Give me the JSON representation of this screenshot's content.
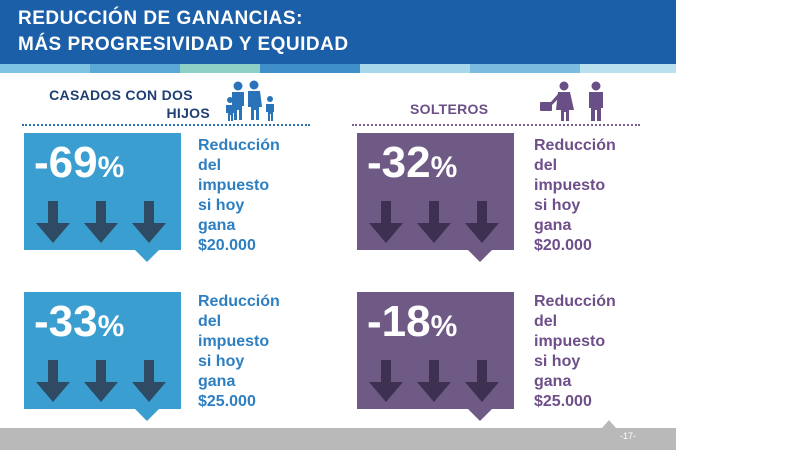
{
  "header": {
    "title_line1": "REDUCCIÓN DE GANANCIAS:",
    "title_line2": "MÁS PROGRESIVIDAD  Y EQUIDAD"
  },
  "colors": {
    "header_blue": "#1b5fa8",
    "box_blue": "#3a9fd0",
    "box_purple": "#6e5a84",
    "arrow_dark": "#2e4b63"
  },
  "sections": {
    "casados": {
      "label_line1": "CASADOS CON DOS",
      "label_line2": "HIJOS",
      "icon": "family-icon",
      "cards": [
        {
          "percent": "-69",
          "symbol": "%",
          "desc": [
            "Reducción",
            "del",
            "impuesto",
            "si hoy",
            "gana",
            "$20.000"
          ]
        },
        {
          "percent": "-33",
          "symbol": "%",
          "desc": [
            "Reducción",
            "del",
            "impuesto",
            "si hoy",
            "gana",
            "$25.000"
          ]
        }
      ]
    },
    "solteros": {
      "label": "SOLTEROS",
      "icon": "single-people-icon",
      "cards": [
        {
          "percent": "-32",
          "symbol": "%",
          "desc": [
            "Reducción",
            "del",
            "impuesto",
            "si hoy",
            "gana",
            "$20.000"
          ]
        },
        {
          "percent": "-18",
          "symbol": "%",
          "desc": [
            "Reducción",
            "del",
            "impuesto",
            "si hoy",
            "gana",
            "$25.000"
          ]
        }
      ]
    }
  },
  "footer": {
    "page": "-17-"
  }
}
